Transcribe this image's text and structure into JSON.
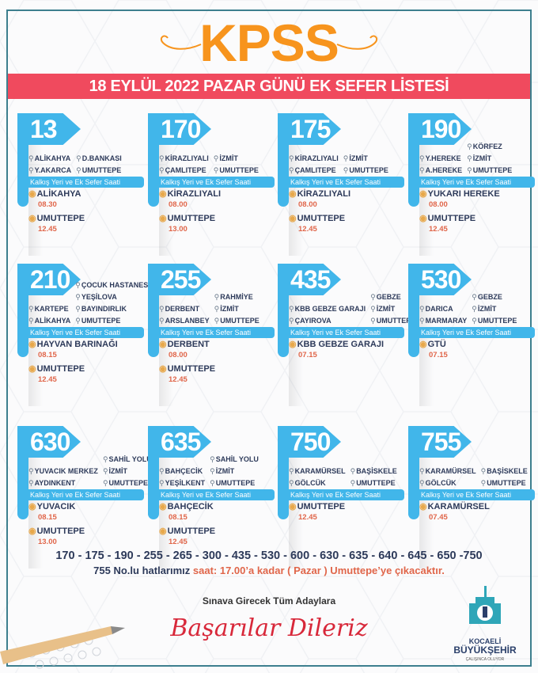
{
  "header": {
    "title": "KPSS",
    "banner": "18 EYLÜL 2022 PAZAR GÜNÜ EK SEFER LİSTESİ"
  },
  "strip_label": "Kalkış Yeri ve Ek Sefer Saati",
  "colors": {
    "accent_blue": "#41b6ea",
    "banner_red": "#f04a5e",
    "title_orange": "#f7941d",
    "time_red": "#e0664a",
    "navy": "#2d3a5a",
    "frame_teal": "#3d7f8e"
  },
  "routes": [
    {
      "number": "13",
      "stops": {
        "left": [
          "ALİKAHYA",
          "Y.AKARCA"
        ],
        "right": [
          "D.BANKASI",
          "UMUTTEPE"
        ]
      },
      "departures": [
        {
          "place": "ALİKAHYA",
          "time": "08.30"
        },
        {
          "place": "UMUTTEPE",
          "time": "12.45"
        }
      ]
    },
    {
      "number": "170",
      "stops": {
        "left": [
          "KİRAZLIYALI",
          "ÇAMLITEPE"
        ],
        "right": [
          "İZMİT",
          "UMUTTEPE"
        ]
      },
      "departures": [
        {
          "place": "KİRAZLIYALI",
          "time": "08.00"
        },
        {
          "place": "UMUTTEPE",
          "time": "13.00"
        }
      ]
    },
    {
      "number": "175",
      "stops": {
        "left": [
          "KİRAZLIYALI",
          "ÇAMLITEPE"
        ],
        "right": [
          "İZMİT",
          "UMUTTEPE"
        ]
      },
      "departures": [
        {
          "place": "KİRAZLIYALI",
          "time": "08.00"
        },
        {
          "place": "UMUTTEPE",
          "time": "12.45"
        }
      ]
    },
    {
      "number": "190",
      "stops": {
        "left": [
          "Y.HEREKE",
          "A.HEREKE"
        ],
        "right": [
          "KÖRFEZ",
          "İZMİT",
          "UMUTTEPE"
        ]
      },
      "departures": [
        {
          "place": "YUKARI HEREKE",
          "time": "08.00"
        },
        {
          "place": "UMUTTEPE",
          "time": "12.45"
        }
      ]
    },
    {
      "number": "210",
      "stops": {
        "left": [
          "KARTEPE",
          "ALİKAHYA"
        ],
        "right": [
          "ÇOCUK HASTANESİ",
          "YEŞİLOVA",
          "BAYINDIRLIK",
          "UMUTTEPE"
        ]
      },
      "departures": [
        {
          "place": "HAYVAN BARINAĞI",
          "time": "08.15"
        },
        {
          "place": "UMUTTEPE",
          "time": "12.45"
        }
      ]
    },
    {
      "number": "255",
      "stops": {
        "left": [
          "DERBENT",
          "ARSLANBEY"
        ],
        "right": [
          "RAHMİYE",
          "İZMİT",
          "UMUTTEPE"
        ]
      },
      "departures": [
        {
          "place": "DERBENT",
          "time": "08.00"
        },
        {
          "place": "UMUTTEPE",
          "time": "12.45"
        }
      ]
    },
    {
      "number": "435",
      "stops": {
        "left": [
          "KBB GEBZE GARAJI",
          "ÇAYIROVA"
        ],
        "right": [
          "GEBZE",
          "İZMİT",
          "UMUTTEPE"
        ]
      },
      "departures": [
        {
          "place": "KBB GEBZE GARAJI",
          "time": "07.15"
        }
      ]
    },
    {
      "number": "530",
      "stops": {
        "left": [
          "DARICA",
          "MARMARAY"
        ],
        "right": [
          "GEBZE",
          "İZMİT",
          "UMUTTEPE"
        ]
      },
      "departures": [
        {
          "place": "GTÜ",
          "time": "07.15"
        }
      ]
    },
    {
      "number": "630",
      "stops": {
        "left": [
          "YUVACIK MERKEZ",
          "AYDINKENT"
        ],
        "right": [
          "SAHİL YOLU",
          "İZMİT",
          "UMUTTEPE"
        ]
      },
      "departures": [
        {
          "place": "YUVACIK",
          "time": "08.15"
        },
        {
          "place": "UMUTTEPE",
          "time": "13.00"
        }
      ]
    },
    {
      "number": "635",
      "stops": {
        "left": [
          "BAHÇECİK",
          "YEŞİLKENT"
        ],
        "right": [
          "SAHİL YOLU",
          "İZMİT",
          "UMUTTEPE"
        ]
      },
      "departures": [
        {
          "place": "BAHÇECİK",
          "time": "08.15"
        },
        {
          "place": "UMUTTEPE",
          "time": "12.45"
        }
      ]
    },
    {
      "number": "750",
      "stops": {
        "left": [
          "KARAMÜRSEL",
          "GÖLCÜK"
        ],
        "right": [
          "BAŞİSKELE",
          "UMUTTEPE"
        ]
      },
      "departures": [
        {
          "place": "UMUTTEPE",
          "time": "12.45"
        }
      ]
    },
    {
      "number": "755",
      "stops": {
        "left": [
          "KARAMÜRSEL",
          "GÖLCÜK"
        ],
        "right": [
          "BAŞİSKELE",
          "UMUTTEPE"
        ]
      },
      "departures": [
        {
          "place": "KARAMÜRSEL",
          "time": "07.45"
        }
      ]
    }
  ],
  "footer": {
    "lines_list": "170 - 175 - 190 - 255 - 265 - 300 - 435 - 530 - 600 - 630 - 635 - 640 - 645 - 650 -750",
    "note_start": "755 No.lu hatlarımız",
    "note_highlight": " saat: 17.00’a kadar ( Pazar ) Umuttepe’ye çıkacaktır.",
    "wish": "Sınava Girecek Tüm Adaylara",
    "script": "Başarılar Dileriz"
  },
  "logo": {
    "line1": "KOCAELİ",
    "line2": "BÜYÜKŞEHİR",
    "slogan": "ÇALIŞINCA OLUYOR"
  },
  "icons": {
    "stop": "map-pin-icon",
    "departure": "location-marker-icon"
  }
}
